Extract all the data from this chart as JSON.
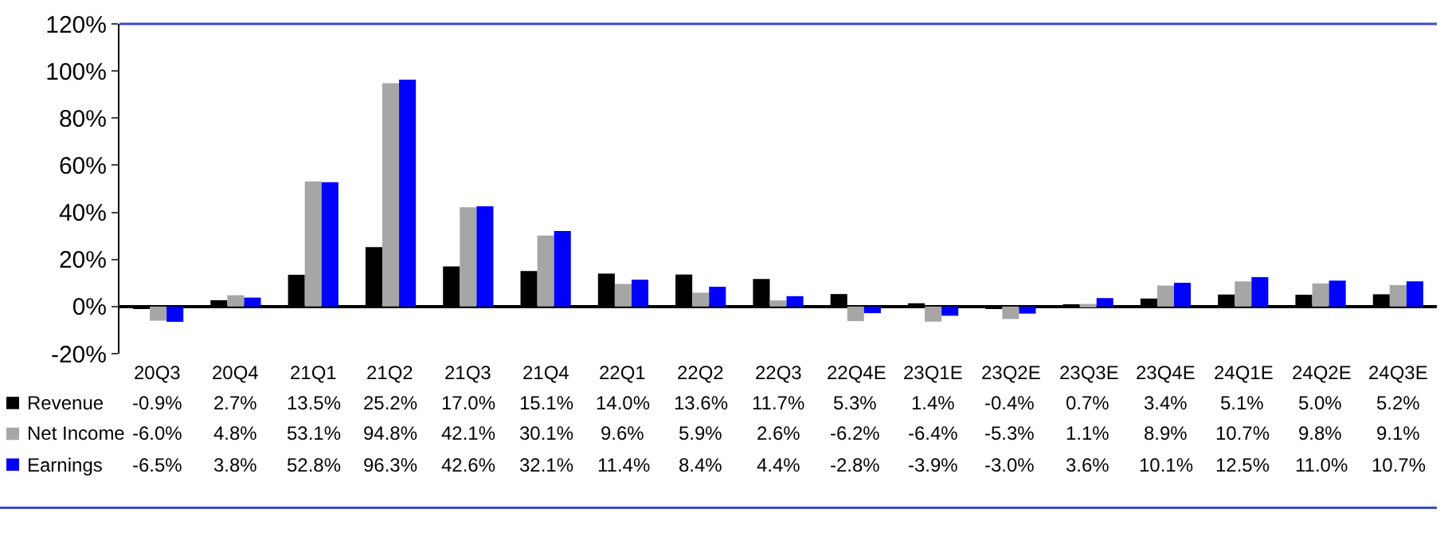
{
  "chart_data": {
    "type": "bar",
    "categories": [
      "20Q3",
      "20Q4",
      "21Q1",
      "21Q2",
      "21Q3",
      "21Q4",
      "22Q1",
      "22Q2",
      "22Q3",
      "22Q4E",
      "23Q1E",
      "23Q2E",
      "23Q3E",
      "23Q4E",
      "24Q1E",
      "24Q2E",
      "24Q3E"
    ],
    "series": [
      {
        "name": "Revenue",
        "color": "#000000",
        "values": [
          -0.9,
          2.7,
          13.5,
          25.2,
          17.0,
          15.1,
          14.0,
          13.6,
          11.7,
          5.3,
          1.4,
          -0.4,
          0.7,
          3.4,
          5.1,
          5.0,
          5.2
        ],
        "value_labels": [
          "-0.9%",
          "2.7%",
          "13.5%",
          "25.2%",
          "17.0%",
          "15.1%",
          "14.0%",
          "13.6%",
          "11.7%",
          "5.3%",
          "1.4%",
          "-0.4%",
          "0.7%",
          "3.4%",
          "5.1%",
          "5.0%",
          "5.2%"
        ]
      },
      {
        "name": "Net Income",
        "color": "#a6a6a6",
        "values": [
          -6.0,
          4.8,
          53.1,
          94.8,
          42.1,
          30.1,
          9.6,
          5.9,
          2.6,
          -6.2,
          -6.4,
          -5.3,
          1.1,
          8.9,
          10.7,
          9.8,
          9.1
        ],
        "value_labels": [
          "-6.0%",
          "4.8%",
          "53.1%",
          "94.8%",
          "42.1%",
          "30.1%",
          "9.6%",
          "5.9%",
          "2.6%",
          "-6.2%",
          "-6.4%",
          "-5.3%",
          "1.1%",
          "8.9%",
          "10.7%",
          "9.8%",
          "9.1%"
        ]
      },
      {
        "name": "Earnings",
        "color": "#0000ff",
        "values": [
          -6.5,
          3.8,
          52.8,
          96.3,
          42.6,
          32.1,
          11.4,
          8.4,
          4.4,
          -2.8,
          -3.9,
          -3.0,
          3.6,
          10.1,
          12.5,
          11.0,
          10.7
        ],
        "value_labels": [
          "-6.5%",
          "3.8%",
          "52.8%",
          "96.3%",
          "42.6%",
          "32.1%",
          "11.4%",
          "8.4%",
          "4.4%",
          "-2.8%",
          "-3.9%",
          "-3.0%",
          "3.6%",
          "10.1%",
          "12.5%",
          "11.0%",
          "10.7%"
        ]
      }
    ],
    "ylim": [
      -20,
      120
    ],
    "yticks": [
      {
        "value": -20,
        "label": "-20%"
      },
      {
        "value": 0,
        "label": "0%"
      },
      {
        "value": 20,
        "label": "20%"
      },
      {
        "value": 40,
        "label": "40%"
      },
      {
        "value": 60,
        "label": "60%"
      },
      {
        "value": 80,
        "label": "80%"
      },
      {
        "value": 100,
        "label": "100%"
      },
      {
        "value": 120,
        "label": "120%"
      }
    ],
    "legend": "bottom left"
  }
}
